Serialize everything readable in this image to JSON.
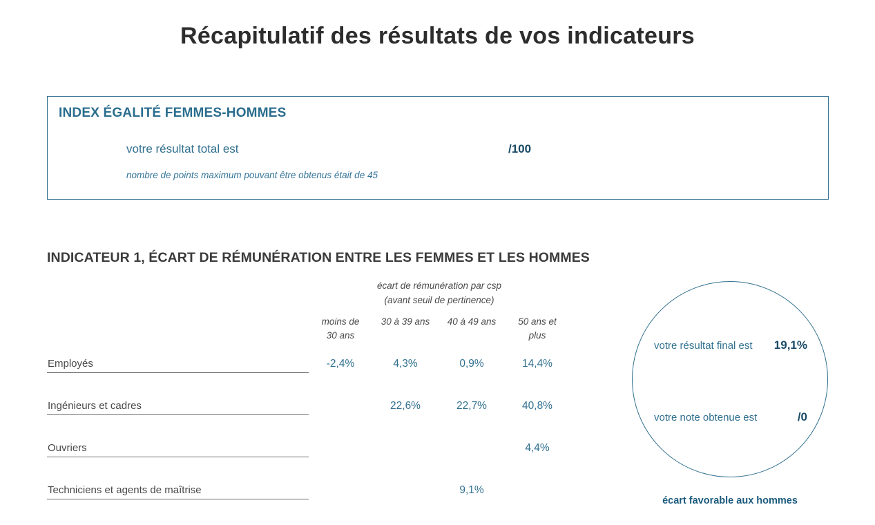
{
  "page": {
    "title": "Récapitulatif des résultats de vos indicateurs"
  },
  "index_box": {
    "heading": "INDEX ÉGALITÉ FEMMES-HOMMES",
    "result_label": "votre résultat total est",
    "result_value": "/100",
    "note": "nombre de points maximum pouvant être obtenus était de 45"
  },
  "indicator1": {
    "heading": "INDICATEUR 1, ÉCART DE RÉMUNÉRATION ENTRE LES FEMMES ET LES HOMMES",
    "table": {
      "group_header_line1": "écart de rémunération par csp",
      "group_header_line2": "(avant seuil de pertinence)",
      "columns": [
        {
          "line1": "moins de",
          "line2": "30 ans"
        },
        {
          "line1": "30 à 39 ans",
          "line2": ""
        },
        {
          "line1": "40 à 49 ans",
          "line2": ""
        },
        {
          "line1": "50 ans et",
          "line2": "plus"
        }
      ],
      "rows": [
        {
          "label": "Employés",
          "values": [
            "-2,4%",
            "4,3%",
            "0,9%",
            "14,4%"
          ]
        },
        {
          "label": "Ingénieurs et cadres",
          "values": [
            "",
            "22,6%",
            "22,7%",
            "40,8%"
          ]
        },
        {
          "label": "Ouvriers",
          "values": [
            "",
            "",
            "",
            "4,4%"
          ]
        },
        {
          "label": "Techniciens et agents de maîtrise",
          "values": [
            "",
            "",
            "9,1%",
            ""
          ]
        }
      ]
    },
    "result_circle": {
      "final_label": "votre résultat final est",
      "final_value": "19,1%",
      "note_label": "votre note obtenue est",
      "note_value": "/0",
      "caption": "écart favorable aux hommes"
    }
  },
  "colors": {
    "accent_steel_blue": "#31708f",
    "value_navy": "#1a4a66",
    "caption_teal": "#1a5a7d",
    "heading_dark": "#2d2d2d"
  }
}
